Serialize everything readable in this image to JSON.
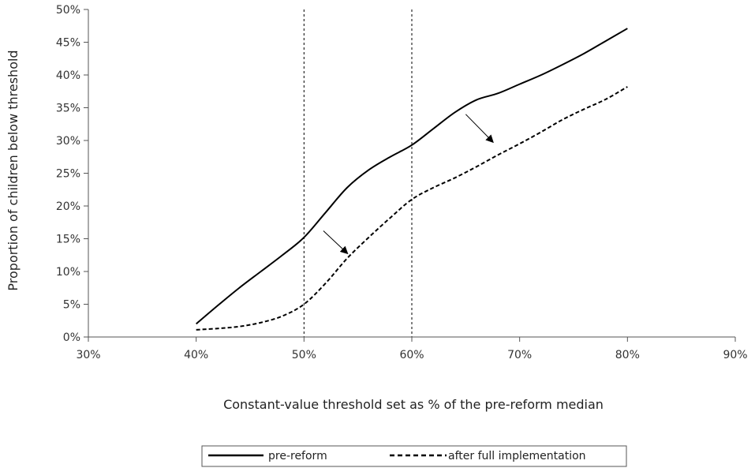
{
  "chart_data": {
    "type": "line",
    "title": "",
    "xlabel": "Constant-value threshold set as % of the pre-reform median",
    "ylabel": "Proportion of children below threshold",
    "xlim": [
      30,
      90
    ],
    "ylim": [
      0,
      50
    ],
    "x_ticks": [
      "30%",
      "40%",
      "50%",
      "60%",
      "70%",
      "80%",
      "90%"
    ],
    "y_ticks": [
      "0%",
      "5%",
      "10%",
      "15%",
      "20%",
      "25%",
      "30%",
      "35%",
      "40%",
      "45%",
      "50%"
    ],
    "grid": false,
    "legend_position": "bottom",
    "reference_lines_x": [
      50,
      60
    ],
    "series": [
      {
        "name": "pre-reform",
        "color": "#000000",
        "line_style": "solid",
        "x": [
          40,
          42,
          44,
          46,
          48,
          50,
          52,
          54,
          56,
          58,
          60,
          62,
          64,
          66,
          68,
          70,
          72,
          74,
          76,
          78,
          80
        ],
        "y": [
          2.0,
          4.8,
          7.5,
          10.0,
          12.5,
          15.2,
          19.0,
          22.8,
          25.5,
          27.5,
          29.3,
          31.8,
          34.3,
          36.2,
          37.2,
          38.6,
          40.0,
          41.6,
          43.3,
          45.2,
          47.1
        ]
      },
      {
        "name": "after full implementation",
        "color": "#000000",
        "line_style": "dashed",
        "x": [
          40,
          42,
          44,
          46,
          48,
          50,
          52,
          54,
          56,
          58,
          60,
          62,
          64,
          66,
          68,
          70,
          72,
          74,
          76,
          78,
          80
        ],
        "y": [
          1.1,
          1.3,
          1.6,
          2.2,
          3.2,
          5.0,
          8.2,
          12.0,
          15.2,
          18.2,
          21.0,
          22.8,
          24.3,
          26.0,
          27.8,
          29.5,
          31.3,
          33.2,
          34.8,
          36.3,
          38.2
        ]
      }
    ],
    "annotations": [
      {
        "type": "arrow",
        "from": [
          51.8,
          16.2
        ],
        "to": [
          54.0,
          12.8
        ]
      },
      {
        "type": "arrow",
        "from": [
          65.0,
          34.0
        ],
        "to": [
          67.5,
          29.8
        ]
      }
    ]
  }
}
